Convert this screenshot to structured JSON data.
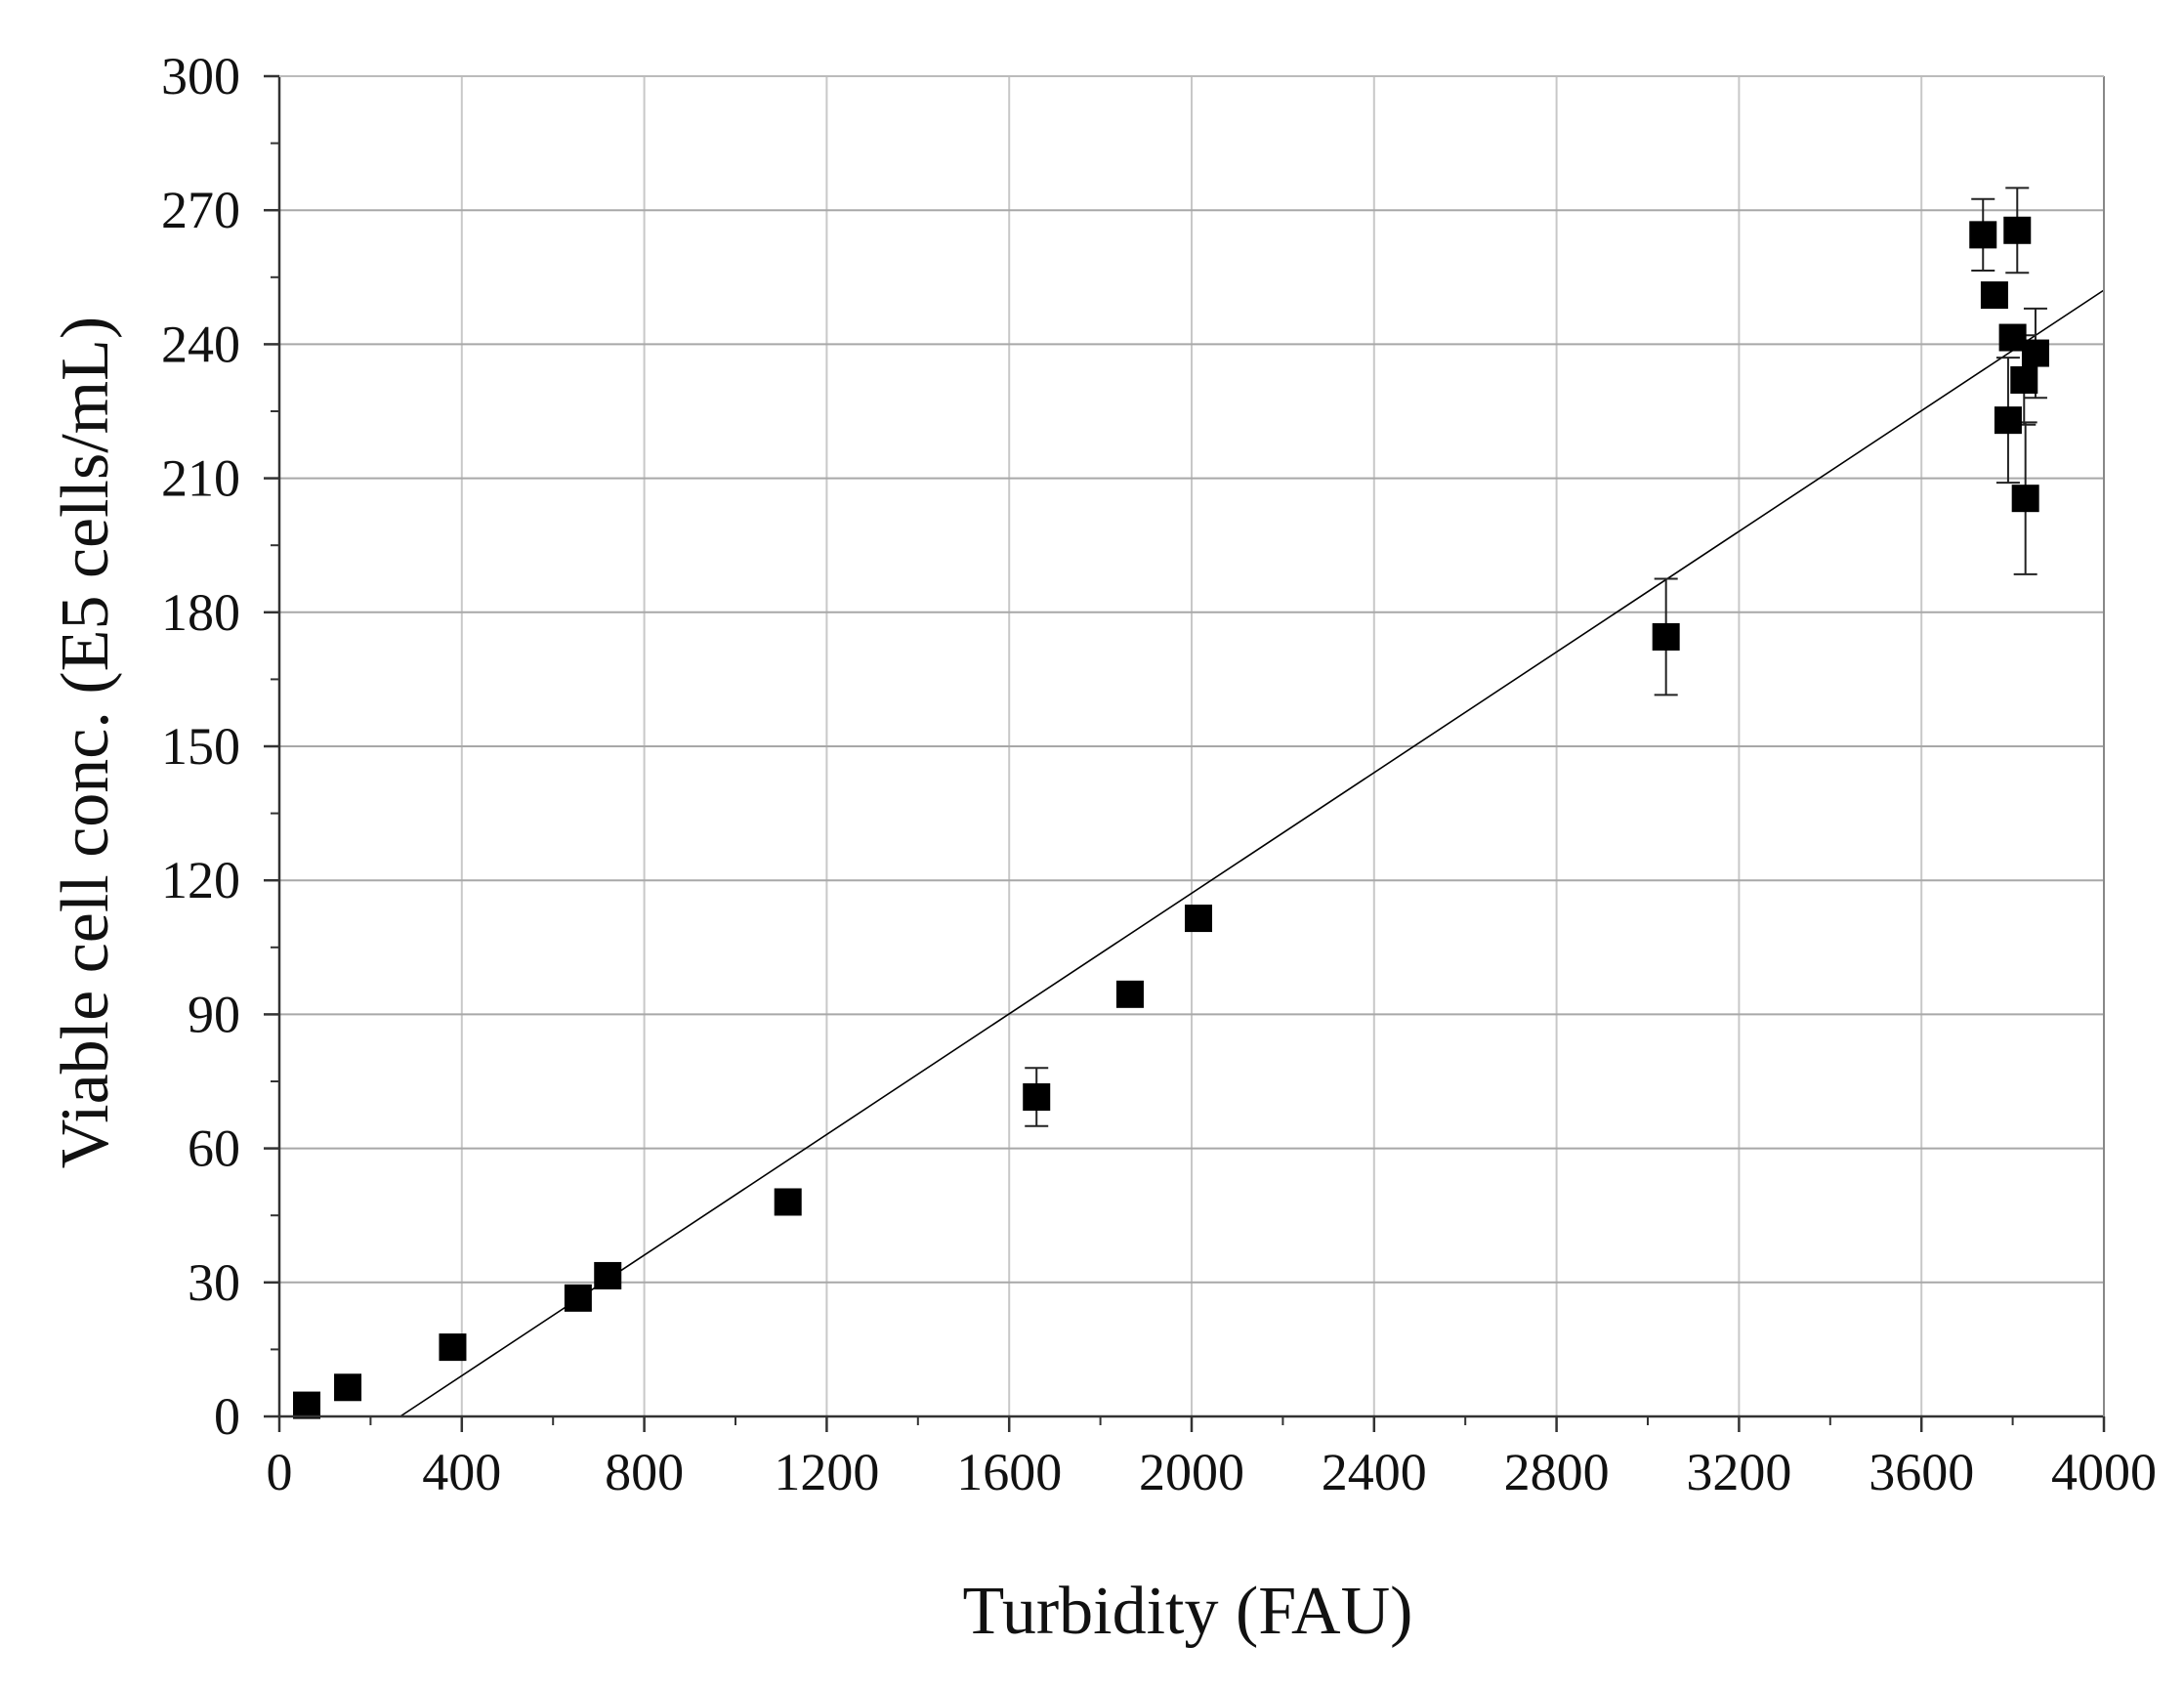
{
  "chart_data": {
    "type": "scatter",
    "title": "",
    "xlabel": "Turbidity (FAU)",
    "ylabel": "Viable cell conc. (E5 cells/mL)",
    "xlim": [
      0,
      4000
    ],
    "ylim": [
      0,
      300
    ],
    "x_ticks": [
      0,
      400,
      800,
      1200,
      1600,
      2000,
      2400,
      2800,
      3200,
      3600,
      4000
    ],
    "y_ticks": [
      0,
      30,
      60,
      90,
      120,
      150,
      180,
      210,
      240,
      270,
      300
    ],
    "x_tick_labels": [
      "0",
      "400",
      "800",
      "1200",
      "1600",
      "2000",
      "2400",
      "2800",
      "3200",
      "3600",
      "4000"
    ],
    "y_tick_labels": [
      "0",
      "30",
      "60",
      "90",
      "120",
      "150",
      "180",
      "210",
      "240",
      "270",
      "300"
    ],
    "grid": true,
    "marker": "square",
    "marker_color": "#000000",
    "series": [
      {
        "points": [
          {
            "x": 60,
            "y": 2.5,
            "err": 0
          },
          {
            "x": 150,
            "y": 6.5,
            "err": 0
          },
          {
            "x": 380,
            "y": 15.5,
            "err": 0
          },
          {
            "x": 655,
            "y": 26.5,
            "err": 0
          },
          {
            "x": 720,
            "y": 31.5,
            "err": 0
          },
          {
            "x": 1115,
            "y": 48,
            "err": 0
          },
          {
            "x": 1660,
            "y": 71.5,
            "err": 6.5
          },
          {
            "x": 1865,
            "y": 94.5,
            "err": 0
          },
          {
            "x": 2015,
            "y": 111.5,
            "err": 0
          },
          {
            "x": 3040,
            "y": 174.5,
            "err": 13
          },
          {
            "x": 3735,
            "y": 264.5,
            "err": 8
          },
          {
            "x": 3760,
            "y": 251,
            "err": 0
          },
          {
            "x": 3790,
            "y": 223,
            "err": 14
          },
          {
            "x": 3800,
            "y": 241.5,
            "err": 0
          },
          {
            "x": 3810,
            "y": 265.5,
            "err": 9.5
          },
          {
            "x": 3825,
            "y": 232,
            "err": 10
          },
          {
            "x": 3828,
            "y": 205.5,
            "err": 17
          },
          {
            "x": 3850,
            "y": 238,
            "err": 10
          }
        ]
      }
    ],
    "fit_line": {
      "type": "linear",
      "x_intercept": 265,
      "slope": 0.0675,
      "x_end": 4000,
      "color": "#000000"
    }
  }
}
